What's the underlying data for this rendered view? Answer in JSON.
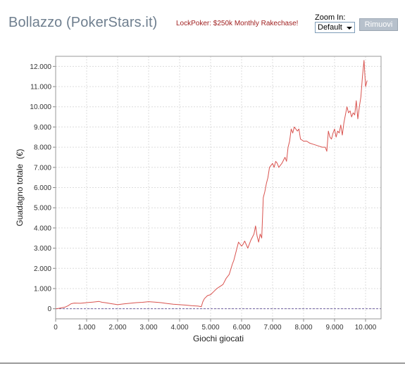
{
  "header": {
    "title": "Bollazzo (PokerStars.it)",
    "promo": "LockPoker: $250k Monthly Rakechase!",
    "zoom_label": "Zoom In:",
    "zoom_value": "Default",
    "remove_label": "Rimuovi"
  },
  "colors": {
    "series": "#d9534f",
    "zero_line": "#6f5fa0",
    "grid": "#dcdcdc",
    "title": "#6f7f8f",
    "promo": "#a02020"
  },
  "chart_data": {
    "type": "line",
    "title": "",
    "xlabel": "Giochi giocati",
    "ylabel": "Guadagno totale  (€)",
    "xlim": [
      0,
      10500
    ],
    "ylim": [
      -500,
      12500
    ],
    "grid": true,
    "legend": "none",
    "x_ticks": [
      0,
      1000,
      2000,
      3000,
      4000,
      5000,
      6000,
      7000,
      8000,
      9000,
      10000
    ],
    "x_tick_labels": [
      "0",
      "1.000",
      "2.000",
      "3.000",
      "4.000",
      "5.000",
      "6.000",
      "7.000",
      "8.000",
      "9.000",
      "10.000"
    ],
    "y_ticks": [
      0,
      1000,
      2000,
      3000,
      4000,
      5000,
      6000,
      7000,
      8000,
      9000,
      10000,
      11000,
      12000
    ],
    "y_tick_labels": [
      "0",
      "1.000",
      "2.000",
      "3.000",
      "4.000",
      "5.000",
      "6.000",
      "7.000",
      "8.000",
      "9.000",
      "10.000",
      "11.000",
      "12.000"
    ],
    "series": [
      {
        "x": [
          0,
          100,
          200,
          300,
          400,
          500,
          600,
          800,
          1000,
          1200,
          1400,
          1500,
          1600,
          1800,
          2000,
          2200,
          2400,
          2600,
          2800,
          3000,
          3200,
          3400,
          3600,
          3800,
          4000,
          4200,
          4400,
          4600,
          4700,
          4750,
          4800,
          4900,
          5000,
          5100,
          5200,
          5300,
          5400,
          5500,
          5600,
          5700,
          5750,
          5800,
          5900,
          6000,
          6050,
          6100,
          6200,
          6300,
          6400,
          6450,
          6500,
          6550,
          6600,
          6650,
          6700,
          6750,
          6800,
          6850,
          6900,
          6950,
          7000,
          7050,
          7100,
          7150,
          7200,
          7300,
          7400,
          7450,
          7500,
          7550,
          7600,
          7650,
          7700,
          7800,
          7850,
          7900,
          8000,
          8100,
          8200,
          8300,
          8400,
          8500,
          8600,
          8650,
          8700,
          8750,
          8800,
          8850,
          8900,
          8950,
          9000,
          9050,
          9100,
          9150,
          9200,
          9250,
          9300,
          9350,
          9400,
          9450,
          9500,
          9550,
          9600,
          9650,
          9700,
          9750,
          9800,
          9850,
          9900,
          9950,
          10000,
          10050
        ],
        "y": [
          0,
          20,
          50,
          80,
          150,
          250,
          280,
          270,
          300,
          330,
          360,
          320,
          300,
          250,
          200,
          240,
          270,
          300,
          320,
          350,
          330,
          300,
          260,
          220,
          200,
          180,
          150,
          130,
          100,
          350,
          500,
          650,
          700,
          850,
          1000,
          1100,
          1200,
          1500,
          1700,
          2200,
          2400,
          2700,
          3300,
          3100,
          3200,
          3350,
          3000,
          3400,
          3700,
          4100,
          3600,
          3300,
          3700,
          3500,
          5500,
          5800,
          6200,
          6500,
          7000,
          7100,
          7200,
          7000,
          7300,
          7200,
          7000,
          7200,
          7500,
          7300,
          8000,
          8300,
          8900,
          8700,
          9000,
          8800,
          8900,
          8400,
          8300,
          8300,
          8200,
          8150,
          8100,
          8050,
          8000,
          8000,
          8000,
          7800,
          8800,
          8500,
          8400,
          8700,
          8900,
          8500,
          8800,
          8700,
          9100,
          8600,
          9200,
          9600,
          10000,
          9700,
          9800,
          9500,
          9700,
          9600,
          10300,
          9400,
          10000,
          10500,
          11500,
          12300,
          11000,
          11300
        ]
      }
    ]
  }
}
